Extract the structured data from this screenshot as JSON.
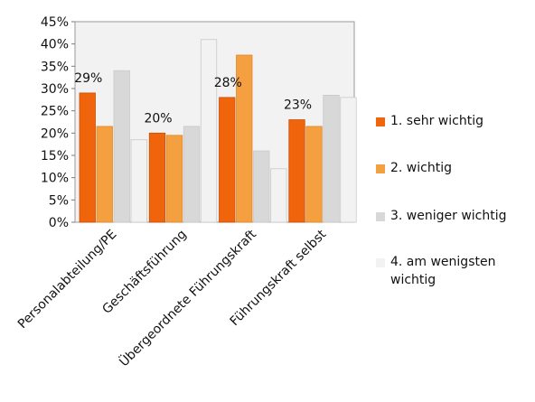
{
  "chart_data": {
    "type": "bar",
    "categories": [
      "Personalabteilung/PE",
      "Geschäftsführung",
      "Übergeordnete Führungskraft",
      "Führungskraft selbst"
    ],
    "series": [
      {
        "name": "1. sehr wichtig",
        "color": "#F0640C",
        "values": [
          29,
          20,
          28,
          23
        ]
      },
      {
        "name": "2. wichtig",
        "color": "#F5A040",
        "values": [
          21.5,
          19.5,
          37.5,
          21.5
        ]
      },
      {
        "name": "3. weniger wichtig",
        "color": "#D8D8D8",
        "values": [
          34,
          21.5,
          16,
          28.5
        ]
      },
      {
        "name": "4. am wenigsten wichtig",
        "color": "#F2F2F2",
        "values": [
          18.5,
          41,
          12,
          28
        ]
      }
    ],
    "data_labels": [
      "29%",
      "20%",
      "28%",
      "23%"
    ],
    "y_ticks": [
      "0%",
      "5%",
      "10%",
      "15%",
      "20%",
      "25%",
      "30%",
      "35%",
      "40%",
      "45%"
    ],
    "ylim": [
      0,
      45
    ],
    "grid": false,
    "legend_position": "right"
  }
}
